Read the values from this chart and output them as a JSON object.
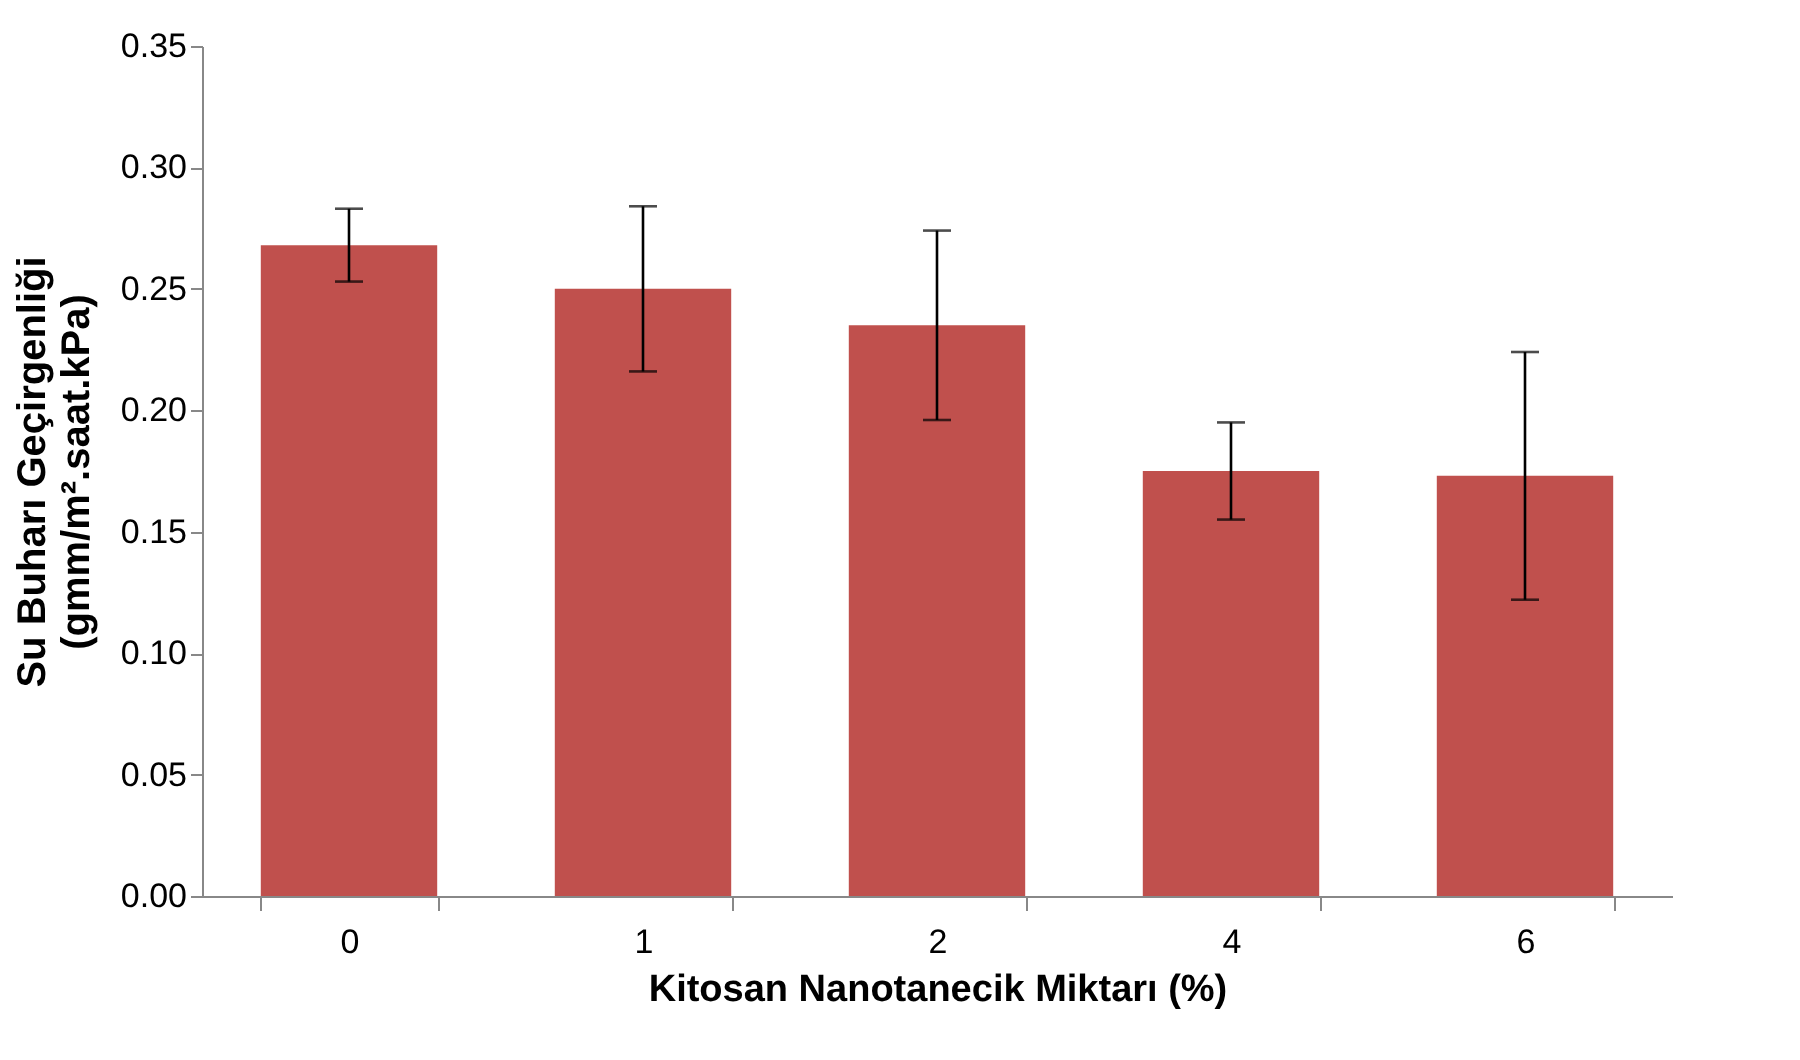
{
  "chart_data": {
    "type": "bar",
    "xlabel": "Kitosan Nanotanecik Miktarı (%)",
    "ylabel": "Su Buharı Geçirgenliği\n(gmm/m².saat.kPa)",
    "categories": [
      "0",
      "1",
      "2",
      "4",
      "6"
    ],
    "values": [
      0.268,
      0.25,
      0.235,
      0.175,
      0.173
    ],
    "errors": [
      0.015,
      0.034,
      0.039,
      0.02,
      0.051
    ],
    "color": "#c0504d",
    "ylim": [
      0,
      0.35
    ],
    "yticks": [
      {
        "value": 0,
        "label": "0.00"
      },
      {
        "value": 0.05,
        "label": "0.05"
      },
      {
        "value": 0.1,
        "label": "0.10"
      },
      {
        "value": 0.15,
        "label": "0.15"
      },
      {
        "value": 0.2,
        "label": "0.20"
      },
      {
        "value": 0.25,
        "label": "0.25"
      },
      {
        "value": 0.3,
        "label": "0.30"
      },
      {
        "value": 0.35,
        "label": "0.35"
      }
    ],
    "grid": false
  }
}
